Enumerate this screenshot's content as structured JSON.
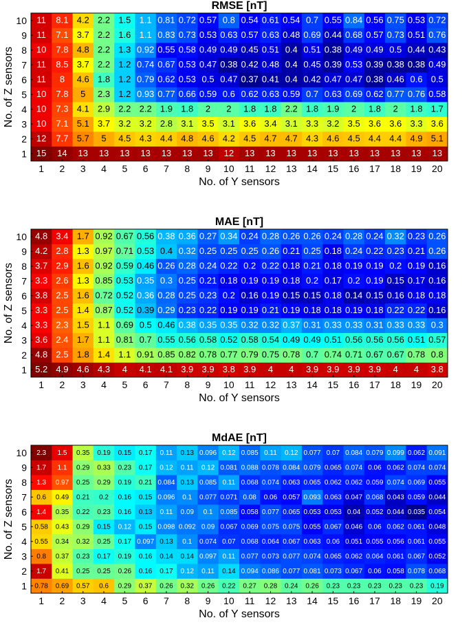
{
  "chart_data": [
    {
      "type": "heatmap",
      "title": "RMSE [nT]",
      "xlabel": "No. of Y sensors",
      "ylabel": "No. of Z sensors",
      "x": [
        1,
        2,
        3,
        4,
        5,
        6,
        7,
        8,
        9,
        10,
        11,
        12,
        13,
        14,
        15,
        16,
        17,
        18,
        19,
        20
      ],
      "y": [
        1,
        2,
        3,
        4,
        5,
        6,
        7,
        8,
        9,
        10
      ],
      "colormap": "jet",
      "cmin": 0.35,
      "cmax": 15,
      "color_scale": "log",
      "values": [
        [
          "15",
          "14",
          "13",
          "13",
          "13",
          "13",
          "13",
          "13",
          "13",
          "12",
          "13",
          "13",
          "13",
          "13",
          "13",
          "13",
          "13",
          "13",
          "13",
          "13"
        ],
        [
          "12",
          "7.7",
          "5.7",
          "5",
          "4.5",
          "4.3",
          "4.4",
          "4.8",
          "4.6",
          "4.2",
          "4.5",
          "4.7",
          "4.7",
          "4.3",
          "4.6",
          "4.5",
          "4.4",
          "4.4",
          "4.9",
          "5.1"
        ],
        [
          "10",
          "7.1",
          "5.1",
          "3.7",
          "3.2",
          "3.2",
          "2.8",
          "3.1",
          "3.5",
          "3.1",
          "3.6",
          "3.4",
          "3.1",
          "3.3",
          "3.2",
          "3.5",
          "3.6",
          "3.6",
          "3.3",
          "3.6"
        ],
        [
          "10",
          "7.3",
          "4.1",
          "2.9",
          "2.2",
          "2.2",
          "1.9",
          "1.8",
          "2",
          "2",
          "1.8",
          "1.8",
          "2.2",
          "1.8",
          "1.9",
          "2",
          "1.8",
          "2",
          "1.8",
          "1.7"
        ],
        [
          "10",
          "7.8",
          "5",
          "2.3",
          "1.2",
          "0.93",
          "0.77",
          "0.66",
          "0.59",
          "0.6",
          "0.62",
          "0.63",
          "0.59",
          "0.7",
          "0.63",
          "0.69",
          "0.62",
          "0.77",
          "0.76",
          "0.58"
        ],
        [
          "11",
          "8",
          "4.6",
          "1.8",
          "1.2",
          "0.79",
          "0.62",
          "0.53",
          "0.5",
          "0.47",
          "0.37",
          "0.41",
          "0.4",
          "0.42",
          "0.47",
          "0.47",
          "0.38",
          "0.46",
          "0.6",
          "0.5"
        ],
        [
          "11",
          "8.5",
          "3.7",
          "2.2",
          "1.2",
          "0.74",
          "0.67",
          "0.53",
          "0.47",
          "0.38",
          "0.42",
          "0.48",
          "0.4",
          "0.45",
          "0.39",
          "0.53",
          "0.39",
          "0.38",
          "0.38",
          "0.49"
        ],
        [
          "10",
          "7.8",
          "4.8",
          "2.2",
          "1.3",
          "0.92",
          "0.55",
          "0.58",
          "0.49",
          "0.49",
          "0.45",
          "0.51",
          "0.4",
          "0.51",
          "0.38",
          "0.49",
          "0.49",
          "0.5",
          "0.44",
          "0.43"
        ],
        [
          "11",
          "7.1",
          "3.7",
          "2.2",
          "1.6",
          "1.1",
          "0.83",
          "0.73",
          "0.53",
          "0.63",
          "0.57",
          "0.63",
          "0.48",
          "0.69",
          "0.44",
          "0.68",
          "0.57",
          "0.73",
          "0.51",
          "0.76"
        ],
        [
          "11",
          "8.1",
          "4.2",
          "2.2",
          "1.5",
          "1.1",
          "0.81",
          "0.72",
          "0.57",
          "0.8",
          "0.54",
          "0.61",
          "0.54",
          "0.7",
          "0.55",
          "0.84",
          "0.56",
          "0.75",
          "0.53",
          "0.72"
        ]
      ]
    },
    {
      "type": "heatmap",
      "title": "MAE [nT]",
      "xlabel": "No. of Y sensors",
      "ylabel": "No. of Z sensors",
      "x": [
        1,
        2,
        3,
        4,
        5,
        6,
        7,
        8,
        9,
        10,
        11,
        12,
        13,
        14,
        15,
        16,
        17,
        18,
        19,
        20
      ],
      "y": [
        1,
        2,
        3,
        4,
        5,
        6,
        7,
        8,
        9,
        10
      ],
      "colormap": "jet",
      "cmin": 0.12,
      "cmax": 5.2,
      "color_scale": "log",
      "values": [
        [
          "5.2",
          "4.9",
          "4.6",
          "4.3",
          "4",
          "4.1",
          "4.1",
          "3.9",
          "3.9",
          "3.8",
          "3.9",
          "4",
          "4",
          "3.9",
          "3.9",
          "3.9",
          "3.9",
          "4",
          "4",
          "3.8"
        ],
        [
          "4.8",
          "2.5",
          "1.8",
          "1.4",
          "1.1",
          "0.91",
          "0.85",
          "0.82",
          "0.78",
          "0.77",
          "0.79",
          "0.75",
          "0.78",
          "0.7",
          "0.74",
          "0.71",
          "0.67",
          "0.67",
          "0.78",
          "0.8"
        ],
        [
          "3.6",
          "2.4",
          "1.7",
          "1.1",
          "0.81",
          "0.7",
          "0.55",
          "0.56",
          "0.58",
          "0.52",
          "0.58",
          "0.54",
          "0.49",
          "0.49",
          "0.51",
          "0.56",
          "0.56",
          "0.56",
          "0.51",
          "0.57"
        ],
        [
          "3.3",
          "2.3",
          "1.5",
          "1.1",
          "0.69",
          "0.5",
          "0.46",
          "0.38",
          "0.35",
          "0.35",
          "0.32",
          "0.32",
          "0.37",
          "0.31",
          "0.33",
          "0.33",
          "0.31",
          "0.33",
          "0.33",
          "0.3"
        ],
        [
          "3.3",
          "2.5",
          "1.4",
          "0.87",
          "0.52",
          "0.39",
          "0.29",
          "0.23",
          "0.22",
          "0.19",
          "0.19",
          "0.21",
          "0.19",
          "0.18",
          "0.18",
          "0.19",
          "0.18",
          "0.22",
          "0.22",
          "0.16"
        ],
        [
          "3.8",
          "2.5",
          "1.6",
          "0.72",
          "0.52",
          "0.36",
          "0.28",
          "0.25",
          "0.23",
          "0.2",
          "0.16",
          "0.19",
          "0.15",
          "0.15",
          "0.18",
          "0.14",
          "0.15",
          "0.16",
          "0.18",
          "0.18"
        ],
        [
          "3.3",
          "2.6",
          "1.3",
          "0.85",
          "0.53",
          "0.35",
          "0.3",
          "0.25",
          "0.21",
          "0.18",
          "0.19",
          "0.19",
          "0.18",
          "0.2",
          "0.17",
          "0.2",
          "0.19",
          "0.15",
          "0.17",
          "0.16"
        ],
        [
          "3.7",
          "2.9",
          "1.6",
          "0.92",
          "0.59",
          "0.46",
          "0.26",
          "0.28",
          "0.24",
          "0.22",
          "0.2",
          "0.22",
          "0.18",
          "0.21",
          "0.18",
          "0.19",
          "0.19",
          "0.2",
          "0.19",
          "0.16"
        ],
        [
          "4.2",
          "2.8",
          "1.3",
          "0.97",
          "0.71",
          "0.53",
          "0.4",
          "0.32",
          "0.25",
          "0.25",
          "0.25",
          "0.26",
          "0.21",
          "0.25",
          "0.18",
          "0.24",
          "0.22",
          "0.23",
          "0.21",
          "0.26"
        ],
        [
          "4.8",
          "3.4",
          "1.7",
          "0.92",
          "0.67",
          "0.56",
          "0.38",
          "0.36",
          "0.27",
          "0.34",
          "0.24",
          "0.28",
          "0.26",
          "0.26",
          "0.24",
          "0.28",
          "0.24",
          "0.32",
          "0.23",
          "0.26"
        ]
      ]
    },
    {
      "type": "heatmap",
      "title": "MdAE [nT]",
      "xlabel": "No. of Y sensors",
      "ylabel": "No. of Z sensors",
      "x": [
        1,
        2,
        3,
        4,
        5,
        6,
        7,
        8,
        9,
        10,
        11,
        12,
        13,
        14,
        15,
        16,
        17,
        18,
        19,
        20
      ],
      "y": [
        1,
        2,
        3,
        4,
        5,
        6,
        7,
        8,
        9,
        10
      ],
      "colormap": "jet",
      "cmin": 0.033,
      "cmax": 2.3,
      "color_scale": "log",
      "values": [
        [
          "0.78",
          "0.69",
          "0.57",
          "0.6",
          "0.29",
          "0.37",
          "0.26",
          "0.32",
          "0.26",
          "0.22",
          "0.27",
          "0.28",
          "0.24",
          "0.26",
          "0.23",
          "0.23",
          "0.23",
          "0.23",
          "0.23",
          "0.19"
        ],
        [
          "1.7",
          "0.41",
          "0.25",
          "0.25",
          "0.26",
          "0.16",
          "0.17",
          "0.12",
          "0.11",
          "0.14",
          "0.094",
          "0.086",
          "0.077",
          "0.081",
          "0.073",
          "0.067",
          "0.06",
          "0.058",
          "0.078",
          "0.068"
        ],
        [
          "0.8",
          "0.37",
          "0.23",
          "0.17",
          "0.19",
          "0.16",
          "0.14",
          "0.14",
          "0.097",
          "0.11",
          "0.077",
          "0.073",
          "0.077",
          "0.074",
          "0.065",
          "0.062",
          "0.064",
          "0.061",
          "0.067",
          "0.052"
        ],
        [
          "0.55",
          "0.34",
          "0.32",
          "0.25",
          "0.17",
          "0.097",
          "0.13",
          "0.1",
          "0.074",
          "0.07",
          "0.068",
          "0.064",
          "0.067",
          "0.063",
          "0.06",
          "0.051",
          "0.055",
          "0.056",
          "0.061",
          "0.055"
        ],
        [
          "0.58",
          "0.43",
          "0.29",
          "0.15",
          "0.12",
          "0.15",
          "0.098",
          "0.092",
          "0.09",
          "0.067",
          "0.069",
          "0.075",
          "0.075",
          "0.055",
          "0.067",
          "0.046",
          "0.06",
          "0.062",
          "0.061",
          "0.048"
        ],
        [
          "1.4",
          "0.35",
          "0.22",
          "0.23",
          "0.16",
          "0.13",
          "0.11",
          "0.09",
          "0.1",
          "0.085",
          "0.058",
          "0.077",
          "0.065",
          "0.053",
          "0.053",
          "0.04",
          "0.052",
          "0.044",
          "0.035",
          "0.054"
        ],
        [
          "0.6",
          "0.49",
          "0.21",
          "0.2",
          "0.16",
          "0.15",
          "0.096",
          "0.1",
          "0.077",
          "0.071",
          "0.08",
          "0.06",
          "0.057",
          "0.093",
          "0.063",
          "0.047",
          "0.068",
          "0.043",
          "0.059",
          "0.044"
        ],
        [
          "1.3",
          "0.97",
          "0.25",
          "0.29",
          "0.19",
          "0.21",
          "0.084",
          "0.13",
          "0.085",
          "0.11",
          "0.068",
          "0.074",
          "0.063",
          "0.065",
          "0.062",
          "0.062",
          "0.059",
          "0.074",
          "0.069",
          "0.055"
        ],
        [
          "1.7",
          "1.1",
          "0.29",
          "0.33",
          "0.23",
          "0.17",
          "0.12",
          "0.11",
          "0.12",
          "0.081",
          "0.088",
          "0.078",
          "0.084",
          "0.079",
          "0.065",
          "0.074",
          "0.06",
          "0.062",
          "0.074",
          "0.074"
        ],
        [
          "2.3",
          "1.5",
          "0.35",
          "0.19",
          "0.15",
          "0.17",
          "0.11",
          "0.13",
          "0.096",
          "0.12",
          "0.085",
          "0.11",
          "0.12",
          "0.077",
          "0.07",
          "0.084",
          "0.079",
          "0.099",
          "0.062",
          "0.091"
        ]
      ]
    }
  ]
}
